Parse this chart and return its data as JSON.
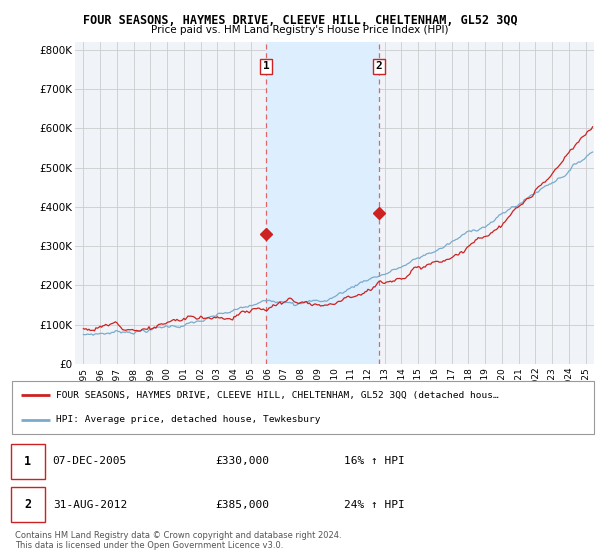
{
  "title": "FOUR SEASONS, HAYMES DRIVE, CLEEVE HILL, CHELTENHAM, GL52 3QQ",
  "subtitle": "Price paid vs. HM Land Registry's House Price Index (HPI)",
  "ylabel_values": [
    0,
    100000,
    200000,
    300000,
    400000,
    500000,
    600000,
    700000,
    800000
  ],
  "ylabel_labels": [
    "£0",
    "£100K",
    "£200K",
    "£300K",
    "£400K",
    "£500K",
    "£600K",
    "£700K",
    "£800K"
  ],
  "sale1_year": 2005.92,
  "sale1_price": 330000,
  "sale1_label": "1",
  "sale2_year": 2012.67,
  "sale2_price": 385000,
  "sale2_label": "2",
  "red_color": "#cc2222",
  "blue_color": "#7aabcc",
  "highlight_color": "#ddeeff",
  "highlight_border": "#cc2222",
  "plot_bg": "#f0f4f8",
  "grid_color": "#cccccc",
  "legend_line1": "FOUR SEASONS, HAYMES DRIVE, CLEEVE HILL, CHELTENHAM, GL52 3QQ (detached hous…",
  "legend_line2": "HPI: Average price, detached house, Tewkesbury",
  "annot1_date": "07-DEC-2005",
  "annot1_price": "£330,000",
  "annot1_hpi": "16% ↑ HPI",
  "annot2_date": "31-AUG-2012",
  "annot2_price": "£385,000",
  "annot2_hpi": "24% ↑ HPI",
  "footnote": "Contains HM Land Registry data © Crown copyright and database right 2024.\nThis data is licensed under the Open Government Licence v3.0.",
  "xlim_left": 1994.5,
  "xlim_right": 2025.5,
  "ylim_bottom": 0,
  "ylim_top": 820000
}
